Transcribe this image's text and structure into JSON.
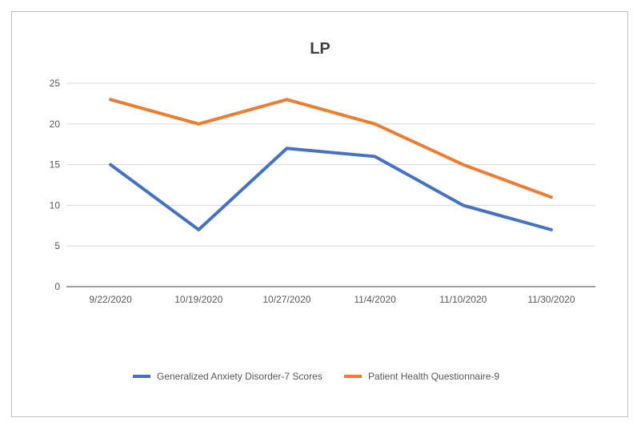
{
  "chart_data": {
    "type": "line",
    "title": "LP",
    "xlabel": "",
    "ylabel": "",
    "categories": [
      "9/22/2020",
      "10/19/2020",
      "10/27/2020",
      "11/4/2020",
      "11/10/2020",
      "11/30/2020"
    ],
    "ylim": [
      0,
      25
    ],
    "yticks": [
      0,
      5,
      10,
      15,
      20,
      25
    ],
    "grid": true,
    "legend_position": "bottom",
    "series": [
      {
        "name": "Generalized Anxiety Disorder-7 Scores",
        "values": [
          15,
          7,
          17,
          16,
          10,
          7
        ],
        "color": "#4472C4"
      },
      {
        "name": "Patient Health Questionnaire-9",
        "values": [
          23,
          20,
          23,
          20,
          15,
          11
        ],
        "color": "#ED7D31"
      }
    ]
  }
}
